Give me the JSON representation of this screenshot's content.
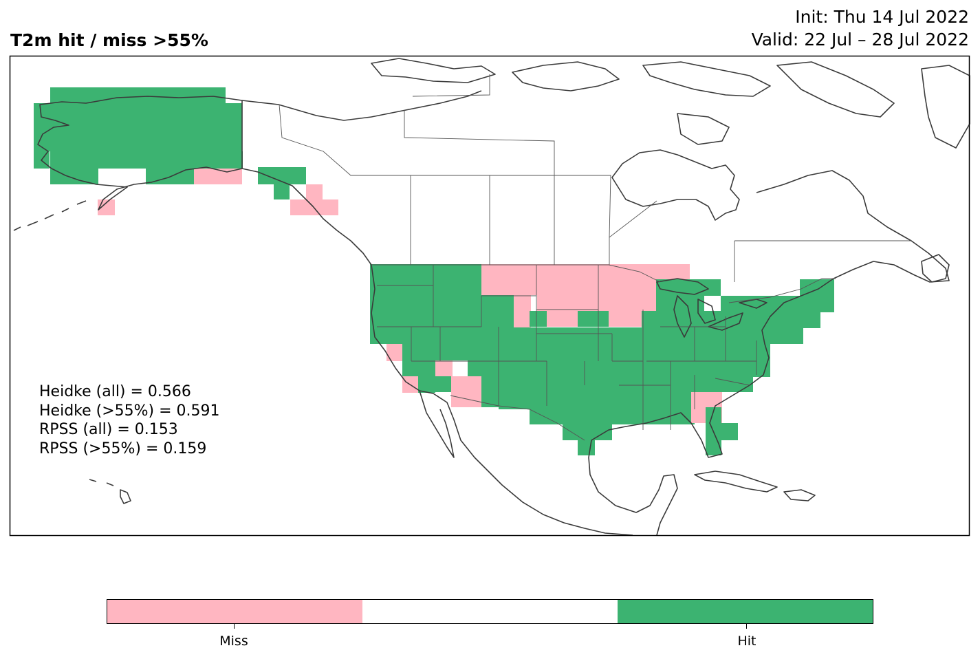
{
  "title": "T2m hit / miss  >55%",
  "init_label": "Init: Thu 14 Jul 2022",
  "valid_label": "Valid: 22 Jul – 28 Jul 2022",
  "scores": [
    "Heidke (all) = 0.566",
    "Heidke (>55%) = 0.591",
    "RPSS (all) = 0.153",
    "RPSS (>55%) = 0.159"
  ],
  "colors": {
    "hit": "#3cb371",
    "miss": "#ffb6c1",
    "neutral": "#ffffff",
    "coast": "#3a3a3a"
  },
  "colorbar": {
    "labels": [
      "Miss",
      "Hit"
    ]
  }
}
